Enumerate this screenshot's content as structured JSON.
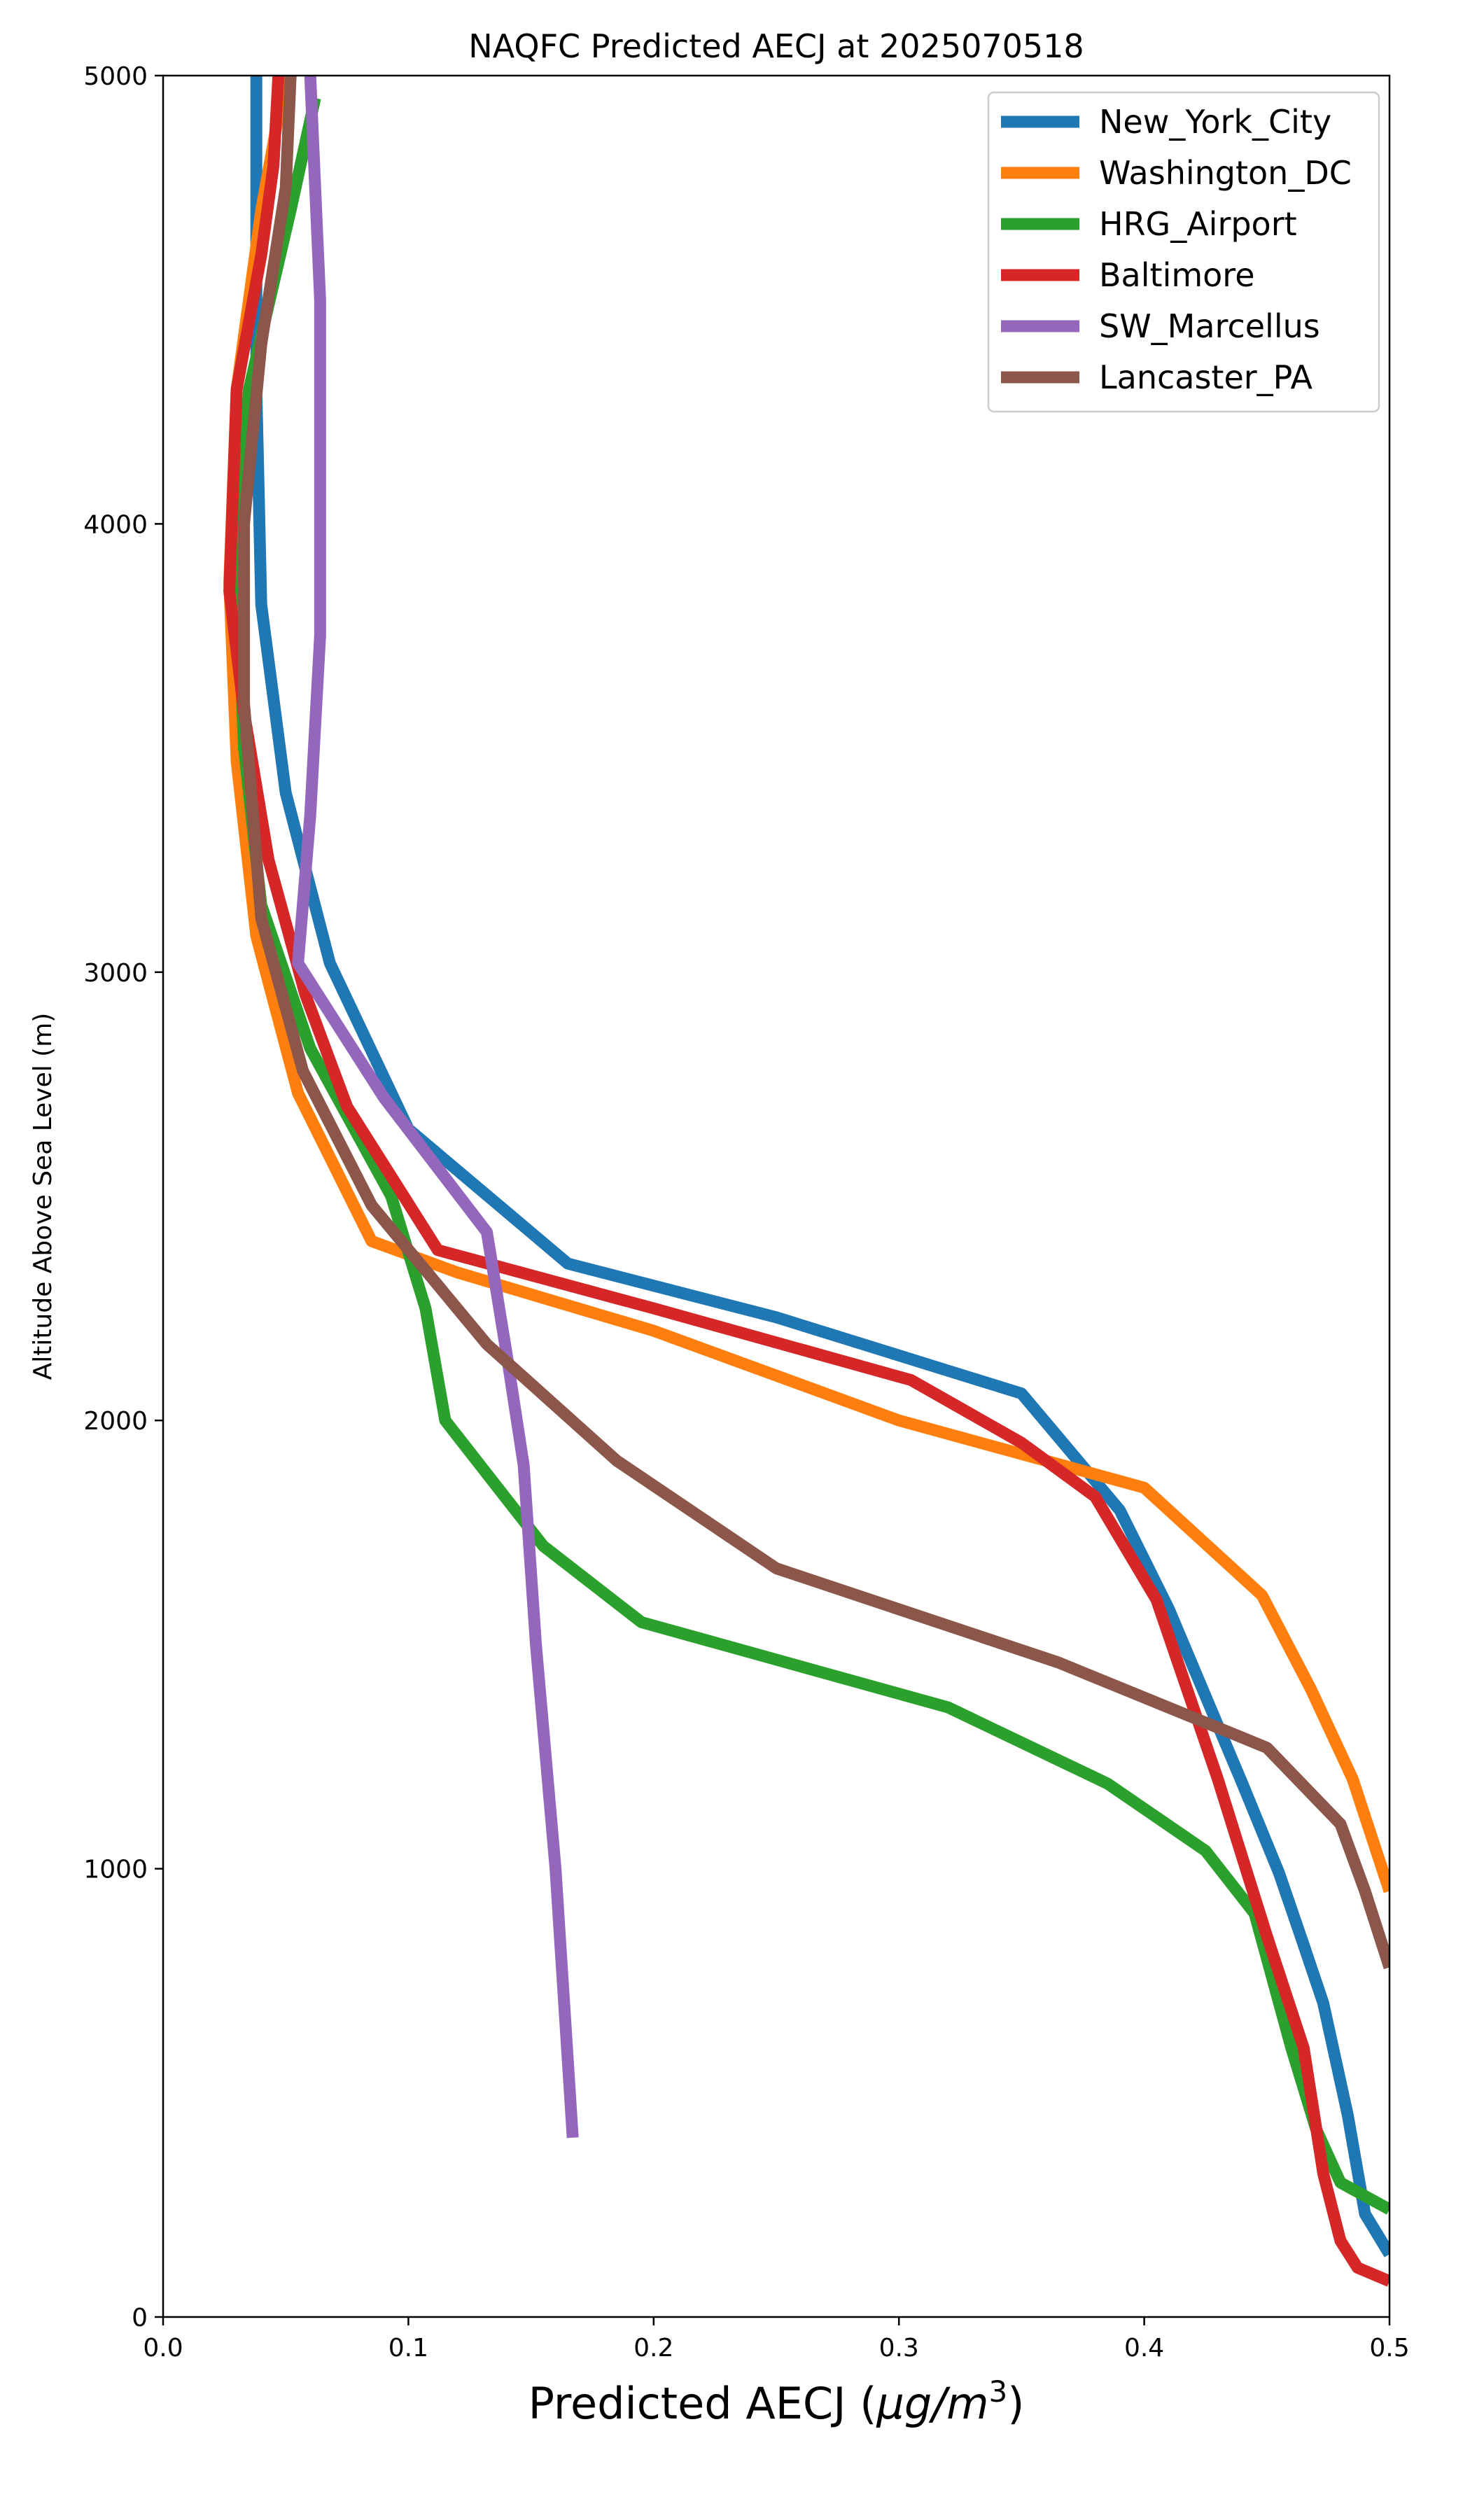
{
  "chart_data": {
    "type": "line",
    "title": "NAQFC Predicted AECJ at 2025070518",
    "xlabel": "Predicted AECJ (",
    "xlabel_unit": "μg/m",
    "xlabel_superscript": "3",
    "xlabel_end": ")",
    "ylabel": "Altitude Above Sea Level (m)",
    "xlim": [
      0.0,
      0.5
    ],
    "ylim": [
      0,
      5000
    ],
    "xticks": [
      0.0,
      0.1,
      0.2,
      0.3,
      0.4,
      0.5
    ],
    "xtick_labels": [
      "0.0",
      "0.1",
      "0.2",
      "0.3",
      "0.4",
      "0.5"
    ],
    "yticks": [
      0,
      1000,
      2000,
      3000,
      4000,
      5000
    ],
    "ytick_labels": [
      "0",
      "1000",
      "2000",
      "3000",
      "4000",
      "5000"
    ],
    "grid": false,
    "legend_position": "top-right",
    "series": [
      {
        "name": "New_York_City",
        "color": "#1f77b4",
        "points": [
          [
            0.5,
            140
          ],
          [
            0.49,
            230
          ],
          [
            0.483,
            450
          ],
          [
            0.473,
            700
          ],
          [
            0.465,
            830
          ],
          [
            0.455,
            990
          ],
          [
            0.44,
            1190
          ],
          [
            0.41,
            1580
          ],
          [
            0.39,
            1800
          ],
          [
            0.35,
            2060
          ],
          [
            0.25,
            2230
          ],
          [
            0.165,
            2350
          ],
          [
            0.1,
            2650
          ],
          [
            0.068,
            3020
          ],
          [
            0.05,
            3400
          ],
          [
            0.04,
            3820
          ],
          [
            0.038,
            4300
          ],
          [
            0.038,
            5000
          ]
        ]
      },
      {
        "name": "Washington_DC",
        "color": "#ff7f0e",
        "points": [
          [
            0.5,
            950
          ],
          [
            0.485,
            1200
          ],
          [
            0.468,
            1400
          ],
          [
            0.448,
            1610
          ],
          [
            0.4,
            1850
          ],
          [
            0.3,
            2000
          ],
          [
            0.2,
            2200
          ],
          [
            0.12,
            2330
          ],
          [
            0.085,
            2400
          ],
          [
            0.055,
            2730
          ],
          [
            0.038,
            3080
          ],
          [
            0.03,
            3470
          ],
          [
            0.027,
            3870
          ],
          [
            0.03,
            4300
          ],
          [
            0.04,
            4700
          ],
          [
            0.05,
            5000
          ]
        ]
      },
      {
        "name": "HRG_Airport",
        "color": "#2ca02c",
        "points": [
          [
            0.5,
            240
          ],
          [
            0.48,
            300
          ],
          [
            0.47,
            420
          ],
          [
            0.46,
            600
          ],
          [
            0.445,
            900
          ],
          [
            0.425,
            1040
          ],
          [
            0.385,
            1190
          ],
          [
            0.32,
            1360
          ],
          [
            0.195,
            1550
          ],
          [
            0.155,
            1720
          ],
          [
            0.115,
            2000
          ],
          [
            0.107,
            2250
          ],
          [
            0.093,
            2500
          ],
          [
            0.06,
            2830
          ],
          [
            0.04,
            3150
          ],
          [
            0.033,
            3500
          ],
          [
            0.03,
            3900
          ],
          [
            0.035,
            4300
          ],
          [
            0.052,
            4700
          ],
          [
            0.062,
            4950
          ]
        ]
      },
      {
        "name": "Baltimore",
        "color": "#d62728",
        "points": [
          [
            0.5,
            80
          ],
          [
            0.487,
            110
          ],
          [
            0.48,
            170
          ],
          [
            0.473,
            320
          ],
          [
            0.465,
            600
          ],
          [
            0.45,
            850
          ],
          [
            0.43,
            1200
          ],
          [
            0.405,
            1600
          ],
          [
            0.38,
            1830
          ],
          [
            0.35,
            1950
          ],
          [
            0.305,
            2090
          ],
          [
            0.2,
            2250
          ],
          [
            0.112,
            2380
          ],
          [
            0.075,
            2700
          ],
          [
            0.058,
            2950
          ],
          [
            0.043,
            3250
          ],
          [
            0.033,
            3580
          ],
          [
            0.027,
            3850
          ],
          [
            0.03,
            4300
          ],
          [
            0.04,
            4600
          ],
          [
            0.045,
            4800
          ],
          [
            0.047,
            5000
          ]
        ]
      },
      {
        "name": "SW_Marcellus",
        "color": "#9467bd",
        "points": [
          [
            0.167,
            400
          ],
          [
            0.16,
            1000
          ],
          [
            0.152,
            1500
          ],
          [
            0.147,
            1900
          ],
          [
            0.14,
            2150
          ],
          [
            0.132,
            2420
          ],
          [
            0.09,
            2720
          ],
          [
            0.055,
            3020
          ],
          [
            0.06,
            3350
          ],
          [
            0.064,
            3750
          ],
          [
            0.064,
            4500
          ],
          [
            0.06,
            5000
          ]
        ]
      },
      {
        "name": "Lancaster_PA",
        "color": "#8c564b",
        "points": [
          [
            0.5,
            780
          ],
          [
            0.49,
            950
          ],
          [
            0.48,
            1100
          ],
          [
            0.45,
            1270
          ],
          [
            0.365,
            1460
          ],
          [
            0.25,
            1670
          ],
          [
            0.185,
            1910
          ],
          [
            0.132,
            2170
          ],
          [
            0.085,
            2480
          ],
          [
            0.057,
            2780
          ],
          [
            0.04,
            3120
          ],
          [
            0.033,
            3600
          ],
          [
            0.033,
            4000
          ],
          [
            0.04,
            4400
          ],
          [
            0.05,
            4750
          ],
          [
            0.052,
            5000
          ]
        ]
      }
    ]
  }
}
